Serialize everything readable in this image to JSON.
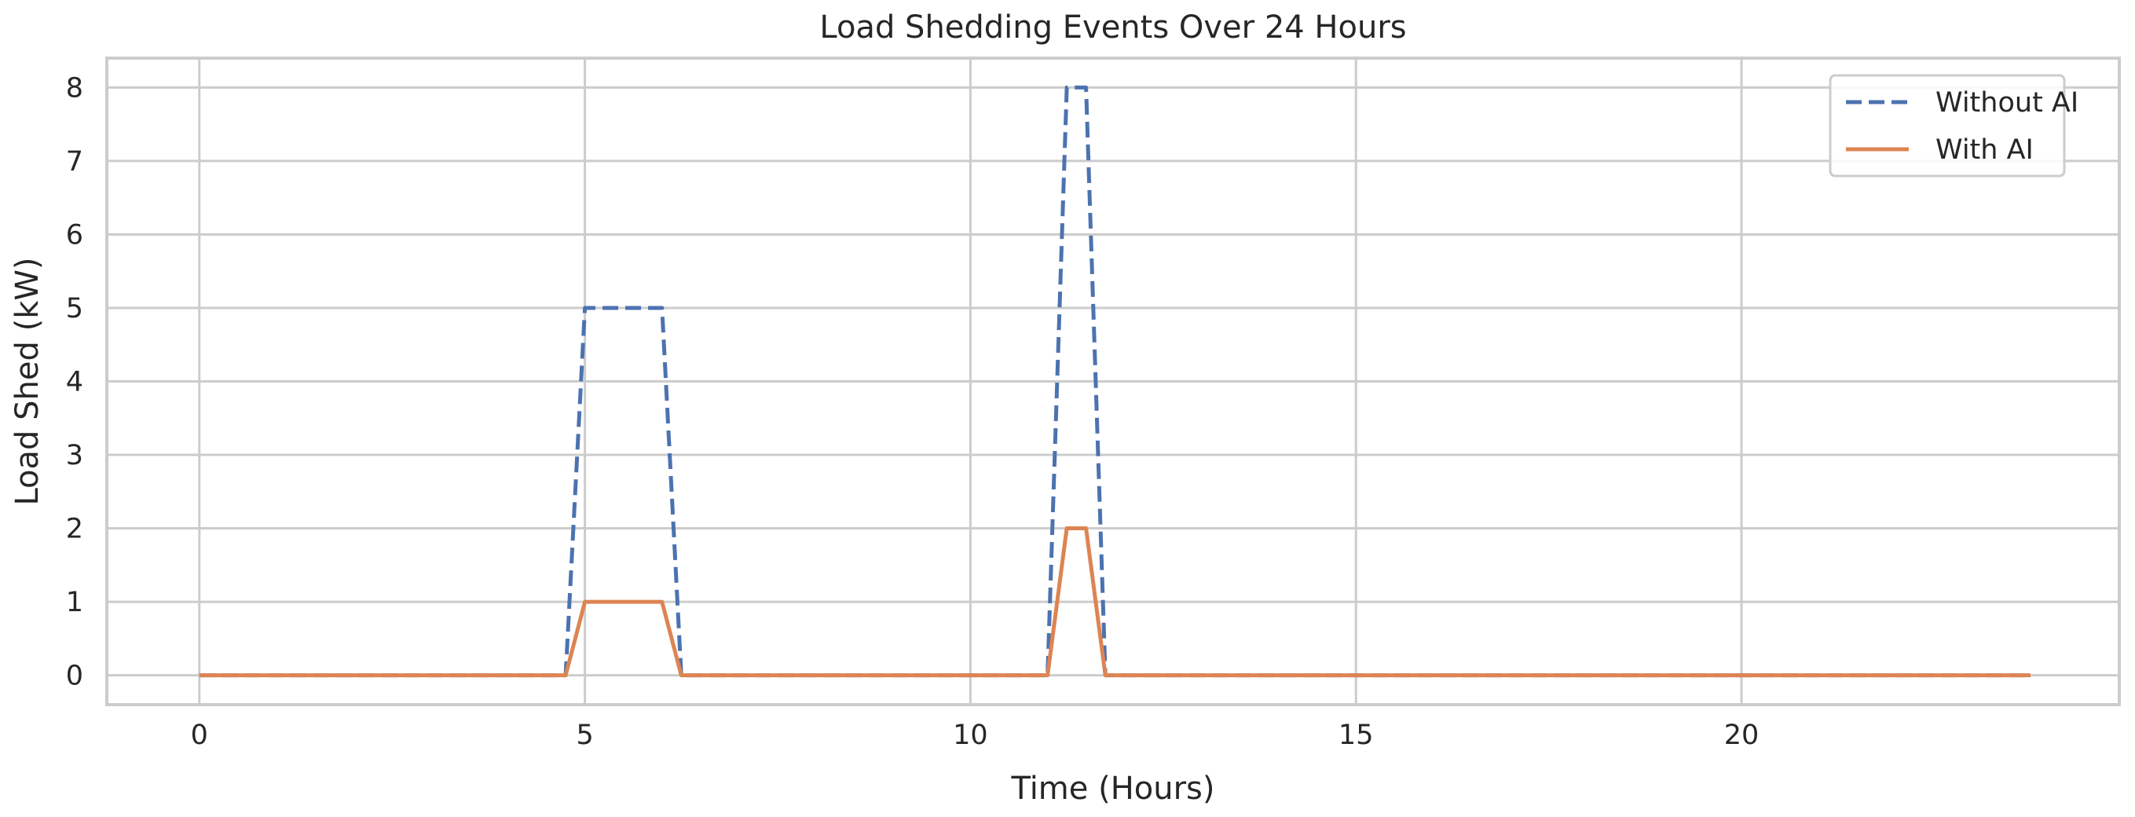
{
  "chart_data": {
    "type": "line",
    "title": "Load Shedding Events Over 24 Hours",
    "xlabel": "Time (Hours)",
    "ylabel": "Load Shed (kW)",
    "xlim": [
      -1.2,
      24.9
    ],
    "ylim": [
      -0.4,
      8.4
    ],
    "x_ticks": [
      0,
      5,
      10,
      15,
      20
    ],
    "y_ticks": [
      0,
      1,
      2,
      3,
      4,
      5,
      6,
      7,
      8
    ],
    "grid": true,
    "legend_position": "top-right",
    "series": [
      {
        "name": "Without AI",
        "color": "#4c72b0",
        "line_style": "dashed",
        "x": [
          0,
          4.75,
          5,
          6,
          6.25,
          11,
          11.25,
          11.5,
          11.75,
          23.75
        ],
        "values": [
          0,
          0,
          5,
          5,
          0,
          0,
          8,
          8,
          0,
          0
        ]
      },
      {
        "name": "With AI",
        "color": "#dd8452",
        "line_style": "solid",
        "x": [
          0,
          4.75,
          5,
          6,
          6.25,
          11,
          11.25,
          11.5,
          11.75,
          23.75
        ],
        "values": [
          0,
          0,
          1,
          1,
          0,
          0,
          2,
          2,
          0,
          0
        ]
      }
    ]
  }
}
